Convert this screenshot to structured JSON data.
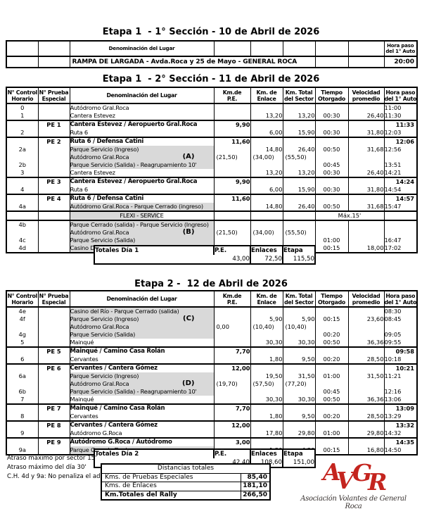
{
  "colors": {
    "shaded_cell": "#d9d9d9",
    "border": "#000000",
    "logo_red": "#c4241e",
    "logo_caption": "#3a3432"
  },
  "columns": [
    {
      "l1": "N° Control",
      "l2": "Horario"
    },
    {
      "l1": "N° Prueba",
      "l2": "Especial"
    },
    {
      "l1": "Denominación del Lugar",
      "l2": ""
    },
    {
      "l1": "Km.de",
      "l2": "P.E."
    },
    {
      "l1": "Km. de",
      "l2": "Enlace"
    },
    {
      "l1": "Km. Total",
      "l2": "del Sector"
    },
    {
      "l1": "Tiempo",
      "l2": "Otorgado"
    },
    {
      "l1": "Velocidad",
      "l2": "promedio"
    },
    {
      "l1": "Hora paso",
      "l2": "del 1° Auto"
    }
  ],
  "section1": {
    "title": "Etapa 1  - 1° Sección - 10 de Abril de 2026",
    "header_denominacion": "Denominación del Lugar",
    "header_hora_l1": "Hora paso",
    "header_hora_l2": "del 1° Auto",
    "row_lugar": "RAMPA DE LARGADA - Avda.Roca y 25 de Mayo - GENERAL ROCA",
    "row_hora": "20:00"
  },
  "section2": {
    "title": "Etapa 1  - 2° Sección - 11 de Abril de 2026",
    "rows": [
      {
        "ctrl": "0",
        "lug": "Autódromo Gral.Roca",
        "hora": "11:00"
      },
      {
        "ctrl": "1",
        "lug": "Cantera Estevez",
        "enl": "13,20",
        "tot": "13,20",
        "tie": "00:30",
        "vel": "26,40",
        "hora": "11:30"
      },
      {
        "pe": "PE 1",
        "lug": "Cantera Estevez / Aeropuerto Gral.Roca",
        "kmpe": "9,90",
        "hora": "11:33",
        "perow": true,
        "top": true
      },
      {
        "ctrl": "2",
        "lug": "Ruta 6",
        "enl": "6,00",
        "tot": "15,90",
        "tie": "00:30",
        "vel": "31,80",
        "hora": "12:03"
      },
      {
        "pe": "PE 2",
        "lug": "Ruta 6 / Defensa Catini",
        "kmpe": "11,60",
        "hora": "12:06",
        "perow": true,
        "top": true
      },
      {
        "ctrl": "2a",
        "lug": "Parque Servicio (Ingreso)",
        "sh": true,
        "enl": "14,80",
        "tot": "26,40",
        "tie": "00:50",
        "vel": "31,68",
        "hora": "12:56"
      },
      {
        "lug": "Autódromo Gral.Roca",
        "ltr": "(A)",
        "sh": true,
        "kmpe": "(21,50)",
        "enl": "(34,00)",
        "tot": "(55,50)"
      },
      {
        "ctrl": "2b",
        "lug": "Parque Servicio (Salida) - Reagrupamiento 10'",
        "sh": true,
        "tie": "00:45",
        "hora": "13:51"
      },
      {
        "ctrl": "3",
        "lug": "Cantera Estevez",
        "enl": "13,20",
        "tot": "13,20",
        "tie": "00:30",
        "vel": "26,40",
        "hora": "14:21"
      },
      {
        "pe": "PE 3",
        "lug": "Cantera Estevez / Aeropuerto Gral.Roca",
        "kmpe": "9,90",
        "hora": "14:24",
        "perow": true,
        "top": true
      },
      {
        "ctrl": "4",
        "lug": "Ruta 6",
        "enl": "6,00",
        "tot": "15,90",
        "tie": "00:30",
        "vel": "31,80",
        "hora": "14:54"
      },
      {
        "pe": "PE 4",
        "lug": "Ruta 6 / Defensa Catini",
        "kmpe": "11,60",
        "hora": "14:57",
        "perow": true,
        "top": true
      },
      {
        "ctrl": "4a",
        "lug": "Autódromo Gral.Roca - Parque Cerrado (ingreso)",
        "sh": true,
        "enl": "14,80",
        "tot": "26,40",
        "tie": "00:50",
        "vel": "31,68",
        "hora": "15:47"
      },
      {
        "flexi": true,
        "lug": "FLEXI - SERVICE",
        "max": "Máx.15'",
        "top": true
      },
      {
        "ctrl": "4b",
        "lug": "Parque Cerrado (salida) - Parque Servicio (Ingreso)",
        "sh": true,
        "top": true
      },
      {
        "lug": "Autódromo Gral.Roca",
        "ltr": "(B)",
        "sh": true,
        "kmpe": "(21,50)",
        "enl": "(34,00)",
        "tot": "(55,50)"
      },
      {
        "ctrl": "4c",
        "lug": "Parque Servicio (Salida)",
        "sh": true,
        "tie": "01:00",
        "hora": "16:47"
      },
      {
        "ctrl": "4d",
        "lug": "Casino Del Río - Parque Cerrado (Ingreso)",
        "sh": true,
        "enl": "4,50",
        "tot": "4,50",
        "tie": "00:15",
        "vel": "18,00",
        "hora": "17:02"
      }
    ],
    "totals": {
      "label": "Totales Día 1",
      "cols": [
        {
          "h": "P.E.",
          "v": "43,00"
        },
        {
          "h": "Enlaces",
          "v": "72,50"
        },
        {
          "h": "Etapa",
          "v": "115,50"
        }
      ]
    }
  },
  "section3": {
    "title": "Etapa 2 -  12 de Abril de 2026",
    "rows": [
      {
        "ctrl": "4e",
        "lug": "Casino del Río - Parque Cerrado (salida)",
        "sh": true,
        "hora": "08:30"
      },
      {
        "ctrl": "4f",
        "lug": "Parque Servicio (Ingreso)",
        "ltr": "(C)",
        "sh": true,
        "enl": "5,90",
        "tot": "5,90",
        "tie": "00:15",
        "vel": "23,60",
        "hora": "08:45"
      },
      {
        "lug": "Autódromo Gral.Roca",
        "sh": true,
        "kmpe": "0,00",
        "kml": true,
        "enl": "(10,40)",
        "tot": "(10,40)"
      },
      {
        "ctrl": "4g",
        "lug": "Parque Servicio (Salida)",
        "sh": true,
        "tie": "00:20",
        "hora": "09:05"
      },
      {
        "ctrl": "5",
        "lug": "Mainqué",
        "enl": "30,30",
        "tot": "30,30",
        "tie": "00:50",
        "vel": "36,36",
        "hora": "09:55"
      },
      {
        "pe": "PE 5",
        "lug": "Mainqué / Camino Casa Rolán",
        "kmpe": "7,70",
        "hora": "09:58",
        "perow": true,
        "top": true
      },
      {
        "ctrl": "6",
        "lug": "Cervantes",
        "enl": "1,80",
        "tot": "9,50",
        "tie": "00:20",
        "vel": "28,50",
        "hora": "10:18"
      },
      {
        "pe": "PE 6",
        "lug": "Cervantes / Cantera Gómez",
        "kmpe": "12,00",
        "hora": "10:21",
        "perow": true,
        "top": true
      },
      {
        "ctrl": "6a",
        "lug": "Parque Servicio (Ingreso)",
        "sh": true,
        "enl": "19,50",
        "tot": "31,50",
        "tie": "01:00",
        "vel": "31,50",
        "hora": "11:21"
      },
      {
        "lug": "Autódromo Gral.Roca",
        "ltr": "(D)",
        "sh": true,
        "kmpe": "(19,70)",
        "enl": "(57,50)",
        "tot": "(77,20)"
      },
      {
        "ctrl": "6b",
        "lug": "Parque Servicio (Salida) - Reagrupamiento 10'",
        "sh": true,
        "tie": "00:45",
        "hora": "12:16"
      },
      {
        "ctrl": "7",
        "lug": "Mainqué",
        "enl": "30,30",
        "tot": "30,30",
        "tie": "00:50",
        "vel": "36,36",
        "hora": "13:06"
      },
      {
        "pe": "PE 7",
        "lug": "Mainqué / Camino Casa Rolán",
        "kmpe": "7,70",
        "hora": "13:09",
        "perow": true,
        "top": true
      },
      {
        "ctrl": "8",
        "lug": "Cervantes",
        "enl": "1,80",
        "tot": "9,50",
        "tie": "00:20",
        "vel": "28,50",
        "hora": "13:29"
      },
      {
        "pe": "PE 8",
        "lug": "Cervantes / Cantera Gómez",
        "kmpe": "12,00",
        "hora": "13:32",
        "perow": true,
        "top": true
      },
      {
        "ctrl": "9",
        "lug": "Autódromo G.Roca",
        "enl": "17,80",
        "tot": "29,80",
        "tie": "01:00",
        "vel": "29,80",
        "hora": "14:32"
      },
      {
        "pe": "PE 9",
        "lug": "Autódromo G.Roca / Autódromo",
        "kmpe": "3,00",
        "hora": "14:35",
        "perow": true,
        "top": true
      },
      {
        "ctrl": "9a",
        "lug": "Parque Cerrado Final -",
        "sh": true,
        "enl": "1,20",
        "tot": "4,20",
        "tie": "00:15",
        "vel": "16,80",
        "hora": "14:50"
      }
    ],
    "totals": {
      "label": "Totales Día 2",
      "cols": [
        {
          "h": "P.E.",
          "v": "42,40"
        },
        {
          "h": "Enlaces",
          "v": "108,60"
        },
        {
          "h": "Etapa",
          "v": "151,00"
        }
      ]
    }
  },
  "footer": {
    "notes": [
      "Atraso máximo por sector 15'",
      "Atraso máximo del día 30'",
      "C.H. 4d y 9a: No penaliza el adelan"
    ],
    "distancias": {
      "title": "Distancias totales",
      "rows": [
        {
          "label": "Kms. de Pruebas Especiales",
          "value": "85,40"
        },
        {
          "label": "Kms. de Enlaces",
          "value": "181,10"
        },
        {
          "label": "Km.Totales del Rally",
          "value": "266,50"
        }
      ]
    },
    "logo": {
      "letters": [
        "A",
        "V",
        "G",
        "R"
      ],
      "caption": "Asociación Volantes de General Roca"
    }
  }
}
